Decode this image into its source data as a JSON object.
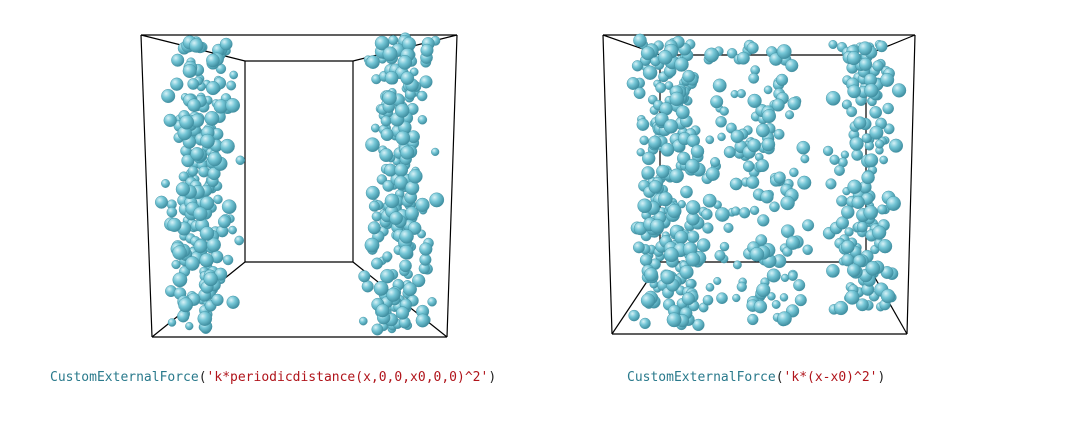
{
  "colors": {
    "particle": "#74c6d6",
    "particle_dark": "#3f8ea0",
    "particle_highlight": "#d8f2f7",
    "box_edge": "#000000",
    "function_name": "#2a7a8c",
    "string_literal": "#b0141b"
  },
  "panels": [
    {
      "caption": {
        "function": "CustomExternalForce",
        "open": "(",
        "expression": "'k*periodicdistance(x,0,0,x0,0,0)^2'",
        "close": ")"
      }
    },
    {
      "caption": {
        "function": "CustomExternalForce",
        "open": "(",
        "expression": "'k*(x-x0)^2'",
        "close": ")"
      }
    }
  ]
}
